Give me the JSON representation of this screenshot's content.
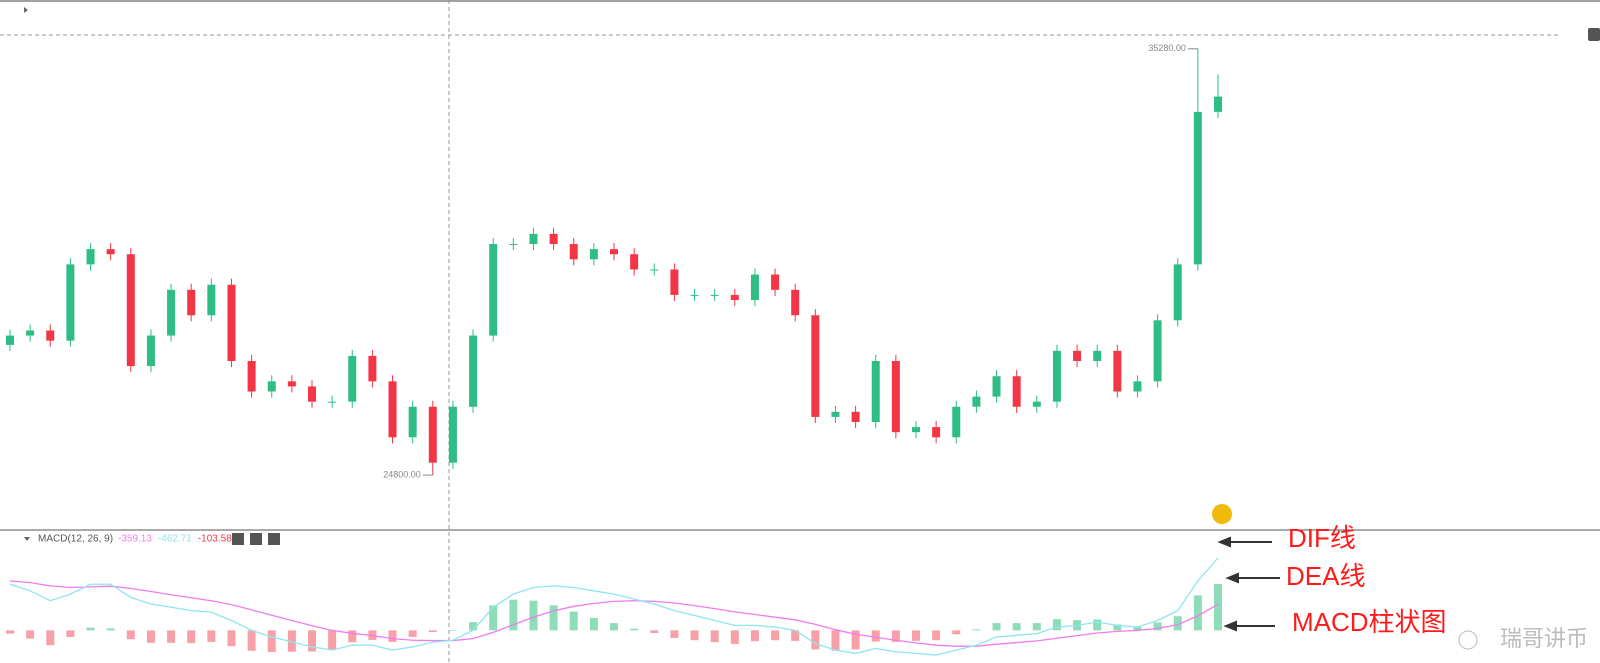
{
  "chart_data": {
    "type": "candlestick",
    "open": [
      28000,
      28230,
      28355,
      28105,
      29980,
      30355,
      30230,
      27480,
      28230,
      29355,
      28730,
      29480,
      27605,
      26855,
      27105,
      26980,
      26605,
      26605,
      27730,
      27105,
      25730,
      26480,
      25105,
      26480,
      28230,
      30480,
      30480,
      30730,
      30480,
      30105,
      30355,
      30230,
      29855,
      29855,
      29230,
      29230,
      29230,
      29105,
      29730,
      29355,
      28730,
      26230,
      26355,
      26105,
      27605,
      25855,
      25980,
      25730,
      26480,
      26730,
      27230,
      26480,
      26605,
      27855,
      27605,
      27855,
      26855,
      27105,
      28605,
      29980,
      33730
    ],
    "high": [
      28380,
      28505,
      28505,
      30130,
      30505,
      30505,
      30380,
      28380,
      29505,
      29505,
      29630,
      29630,
      27755,
      27255,
      27255,
      27130,
      26755,
      27880,
      27880,
      27255,
      26630,
      26630,
      26630,
      28380,
      30630,
      30630,
      30880,
      30880,
      30630,
      30505,
      30505,
      30380,
      30005,
      30005,
      29380,
      29380,
      29380,
      29880,
      29880,
      29505,
      28880,
      26505,
      26505,
      27755,
      27755,
      26130,
      26130,
      26630,
      26880,
      27380,
      27380,
      26755,
      28005,
      28005,
      28005,
      28005,
      27255,
      28755,
      30130,
      35280,
      34650
    ],
    "low": [
      27850,
      28080,
      27955,
      27955,
      29830,
      30080,
      27330,
      27330,
      28080,
      28580,
      28580,
      27455,
      26705,
      26705,
      26830,
      26455,
      26455,
      26455,
      26955,
      25580,
      25580,
      24800,
      24955,
      26330,
      28080,
      30330,
      30330,
      30330,
      29955,
      29955,
      30080,
      29705,
      29705,
      29080,
      29080,
      29080,
      28955,
      28955,
      29205,
      28580,
      26080,
      26080,
      25955,
      25955,
      25705,
      25705,
      25580,
      25580,
      26330,
      26580,
      26330,
      26330,
      26455,
      27455,
      27455,
      26705,
      26705,
      26955,
      28455,
      29830,
      33580
    ],
    "close": [
      28230,
      28355,
      28105,
      29980,
      30355,
      30230,
      27480,
      28230,
      29355,
      28730,
      29480,
      27605,
      26855,
      27105,
      26980,
      26605,
      26605,
      27730,
      27105,
      25730,
      26480,
      25105,
      26480,
      28230,
      30480,
      30480,
      30730,
      30480,
      30105,
      30355,
      30230,
      29855,
      29855,
      29230,
      29230,
      29230,
      29105,
      29730,
      29355,
      28730,
      26230,
      26355,
      26105,
      27605,
      25855,
      25980,
      25730,
      26480,
      26730,
      27230,
      26480,
      26605,
      27855,
      27605,
      27855,
      26855,
      27105,
      28605,
      29980,
      33730,
      34105
    ],
    "ylim": [
      23450,
      36480
    ],
    "up_color": "#2ebd85",
    "down_color": "#f23645",
    "high_marker": {
      "value": 35280,
      "label": "35280.00"
    },
    "low_marker": {
      "value": 24800,
      "label": "24800.00"
    },
    "indicator": {
      "type": "macd",
      "label": "MACD(12, 26, 9)",
      "legend_values": [
        -359.13,
        -462.71,
        -103.58
      ],
      "ylim": [
        -900,
        2500
      ],
      "dif": {
        "color": "#8ee6ee",
        "values": [
          1400,
          1200,
          900,
          1100,
          1400,
          1400,
          1000,
          800,
          700,
          600,
          550,
          300,
          0,
          -200,
          -350,
          -500,
          -600,
          -450,
          -450,
          -600,
          -500,
          -360,
          -300,
          0,
          700,
          1100,
          1300,
          1350,
          1300,
          1200,
          1100,
          950,
          800,
          600,
          450,
          300,
          150,
          150,
          100,
          0,
          -400,
          -600,
          -700,
          -550,
          -650,
          -700,
          -750,
          -600,
          -450,
          -200,
          -150,
          -100,
          100,
          150,
          250,
          150,
          100,
          300,
          600,
          1500,
          2200
        ]
      },
      "dea": {
        "color": "#f07cf0",
        "values": [
          1500,
          1450,
          1350,
          1300,
          1320,
          1340,
          1270,
          1180,
          1080,
          990,
          900,
          780,
          620,
          460,
          300,
          140,
          0,
          -90,
          -160,
          -250,
          -300,
          -310,
          -310,
          -250,
          -60,
          170,
          400,
          590,
          730,
          820,
          880,
          900,
          880,
          830,
          750,
          660,
          560,
          480,
          400,
          320,
          180,
          20,
          -120,
          -210,
          -300,
          -380,
          -450,
          -480,
          -480,
          -420,
          -370,
          -320,
          -240,
          -160,
          -80,
          -30,
          0,
          60,
          170,
          440,
          790
        ]
      },
      "histogram": {
        "up_color": "#8edcb8",
        "down_color": "#f7a0a8",
        "values": [
          -100,
          -250,
          -450,
          -200,
          80,
          60,
          -270,
          -380,
          -380,
          -390,
          -350,
          -480,
          -620,
          -660,
          -650,
          -640,
          -600,
          -360,
          -290,
          -350,
          -200,
          -50,
          10,
          250,
          760,
          930,
          900,
          760,
          570,
          380,
          220,
          50,
          -80,
          -230,
          -300,
          -360,
          -410,
          -330,
          -300,
          -320,
          -580,
          -620,
          -580,
          -340,
          -350,
          -320,
          -300,
          -120,
          30,
          220,
          220,
          220,
          340,
          310,
          330,
          180,
          100,
          240,
          430,
          1060,
          1410
        ]
      }
    },
    "annotations": [
      "DIF线",
      "DEA线",
      "MACD柱状图"
    ],
    "watermark": "瑞哥讲币"
  }
}
